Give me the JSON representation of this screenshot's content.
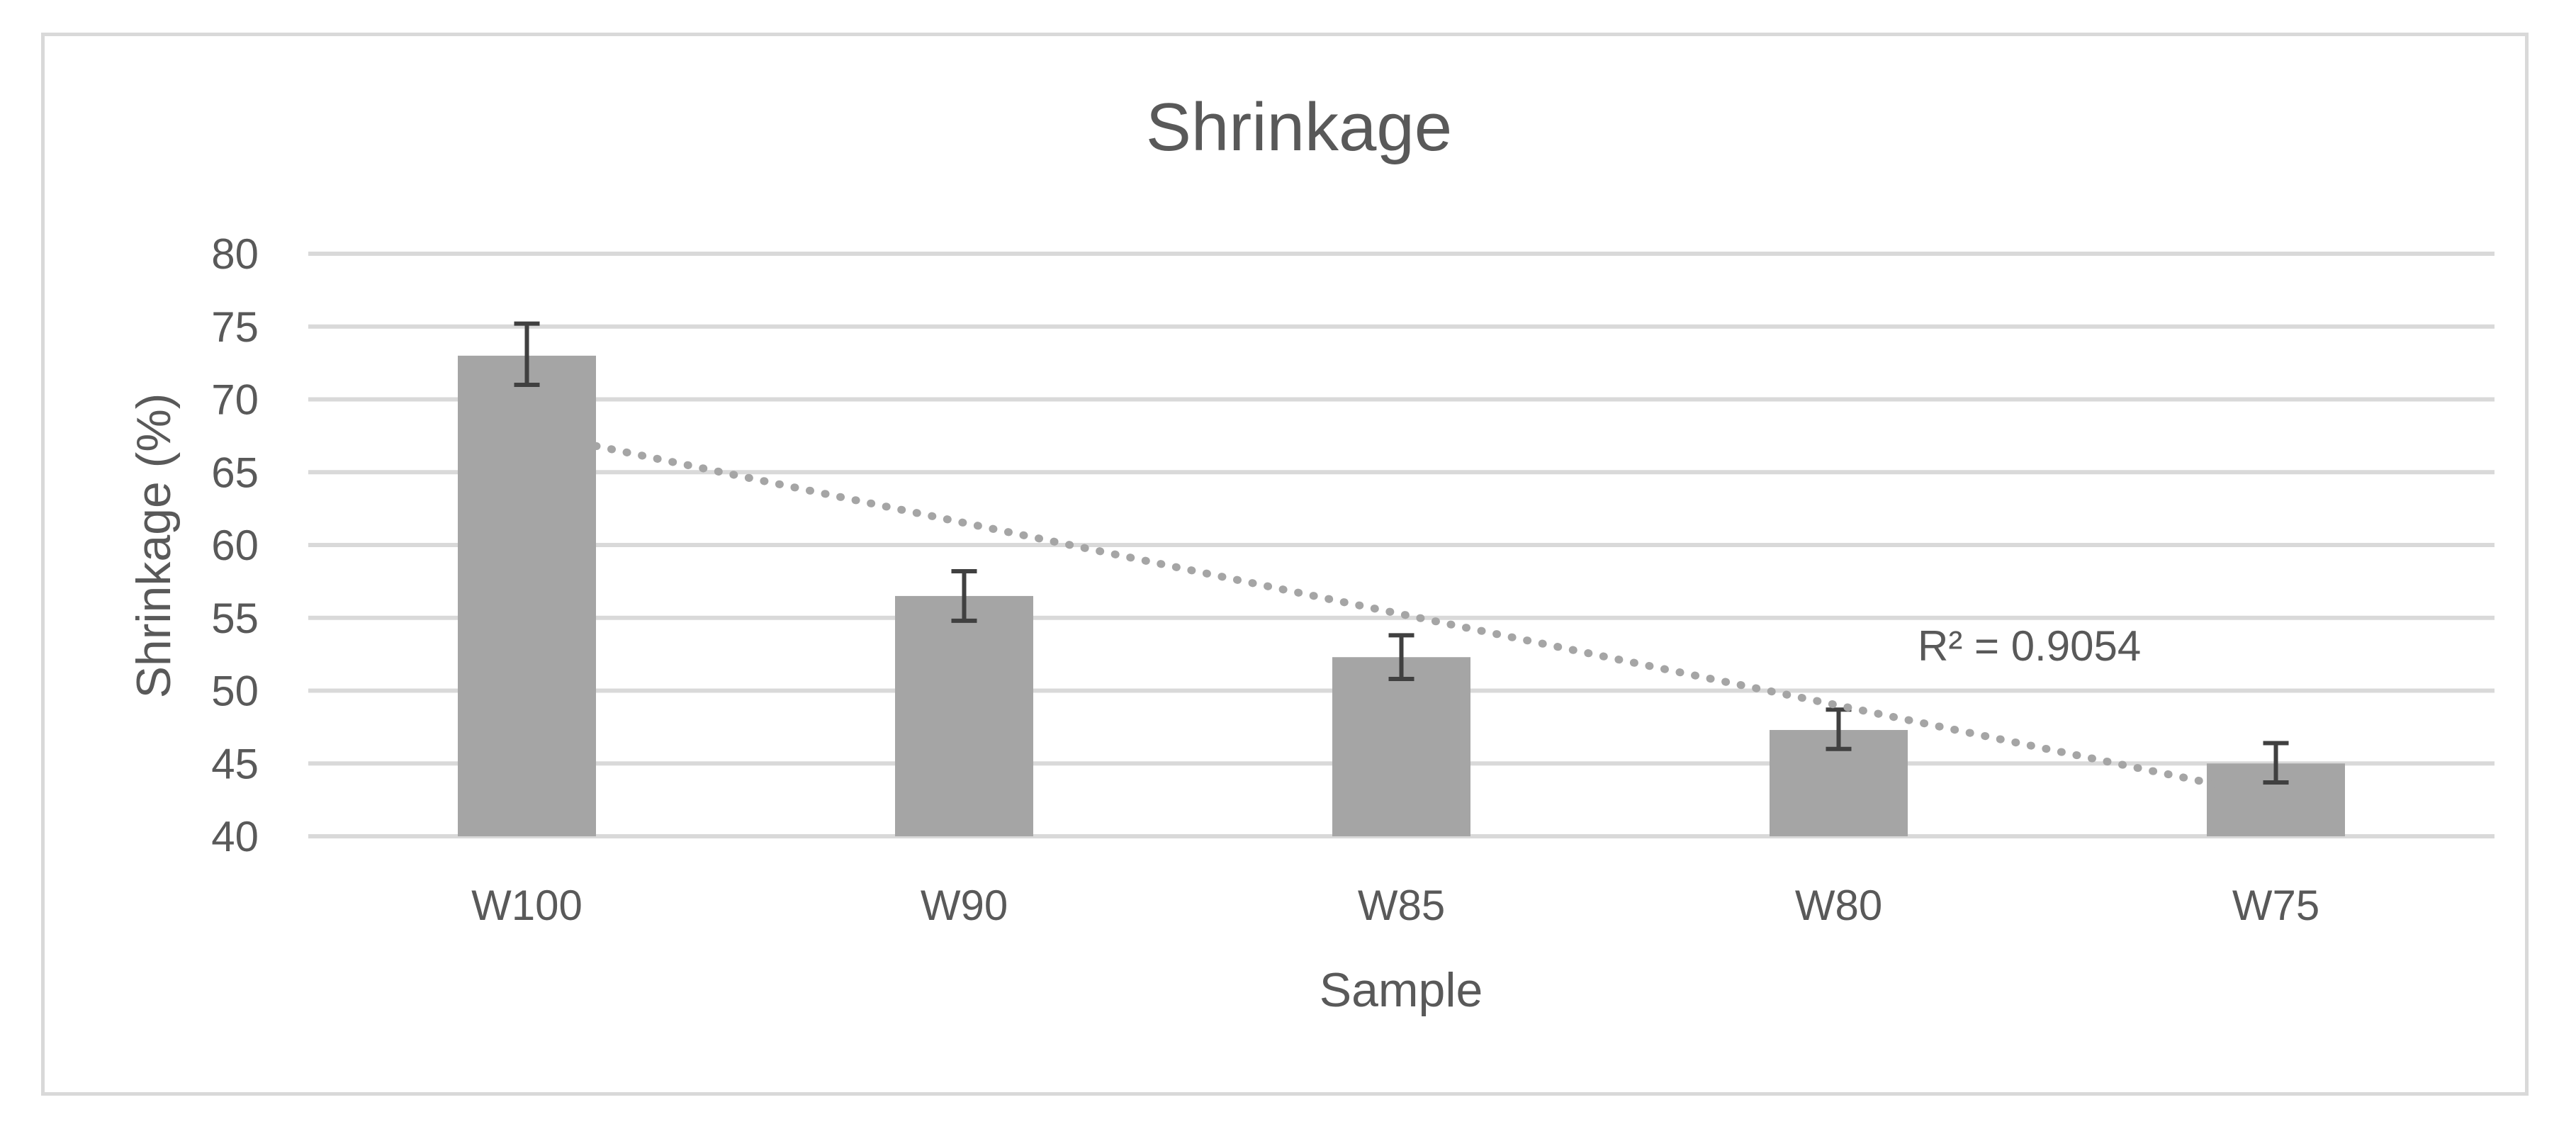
{
  "chart_data": {
    "type": "bar",
    "title": "Shrinkage",
    "xlabel": "Sample",
    "ylabel": "Shrinkage (%)",
    "categories": [
      "W100",
      "W90",
      "W85",
      "W80",
      "W75"
    ],
    "values": [
      73.0,
      56.5,
      52.3,
      47.3,
      45.0
    ],
    "error_low": [
      71.0,
      54.8,
      50.8,
      46.0,
      43.7
    ],
    "error_high": [
      75.2,
      58.2,
      53.8,
      48.7,
      46.4
    ],
    "ylim": [
      40,
      80
    ],
    "yticks": [
      "80",
      "75",
      "70",
      "65",
      "60",
      "55",
      "50",
      "45",
      "40"
    ],
    "trendline": {
      "type": "linear",
      "start": 66.8,
      "end": 43.5,
      "label": "R² = 0.9054"
    },
    "grid": true,
    "legend": "none",
    "colors": {
      "bar": "#a5a5a5",
      "text": "#595959",
      "grid": "#d9d9d9",
      "error": "#404040",
      "trend": "#a5a5a5"
    }
  }
}
